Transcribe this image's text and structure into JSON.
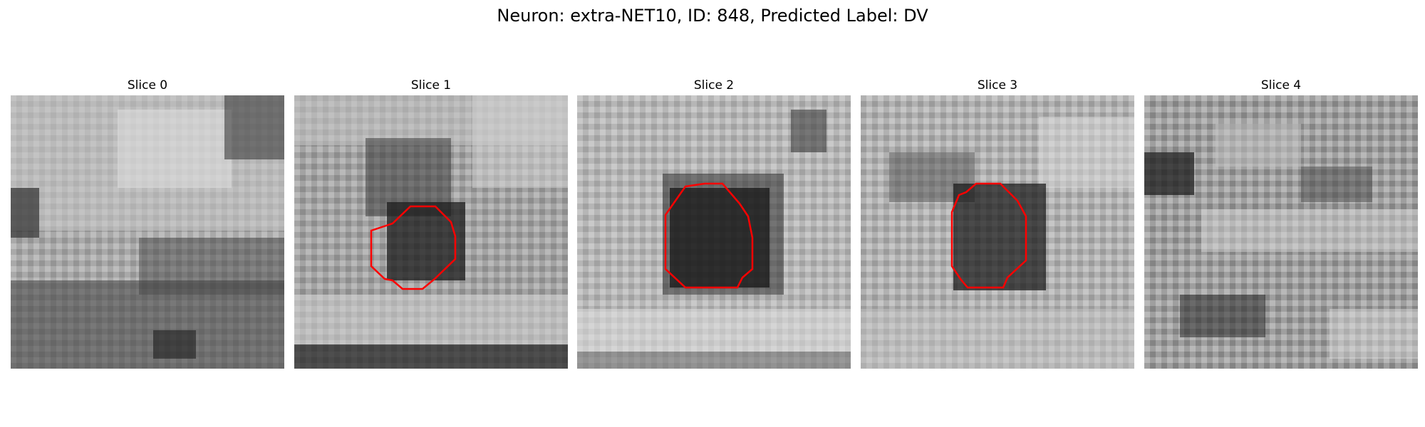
{
  "figure": {
    "title": "Neuron: extra-NET10, ID: 848, Predicted Label: DV"
  },
  "colors": {
    "contour": "#ff0000",
    "background": "#ffffff"
  },
  "panels": [
    {
      "title": "Slice 0",
      "has_contour": false
    },
    {
      "title": "Slice 1",
      "has_contour": true
    },
    {
      "title": "Slice 2",
      "has_contour": true
    },
    {
      "title": "Slice 3",
      "has_contour": true
    },
    {
      "title": "Slice 4",
      "has_contour": false
    }
  ]
}
